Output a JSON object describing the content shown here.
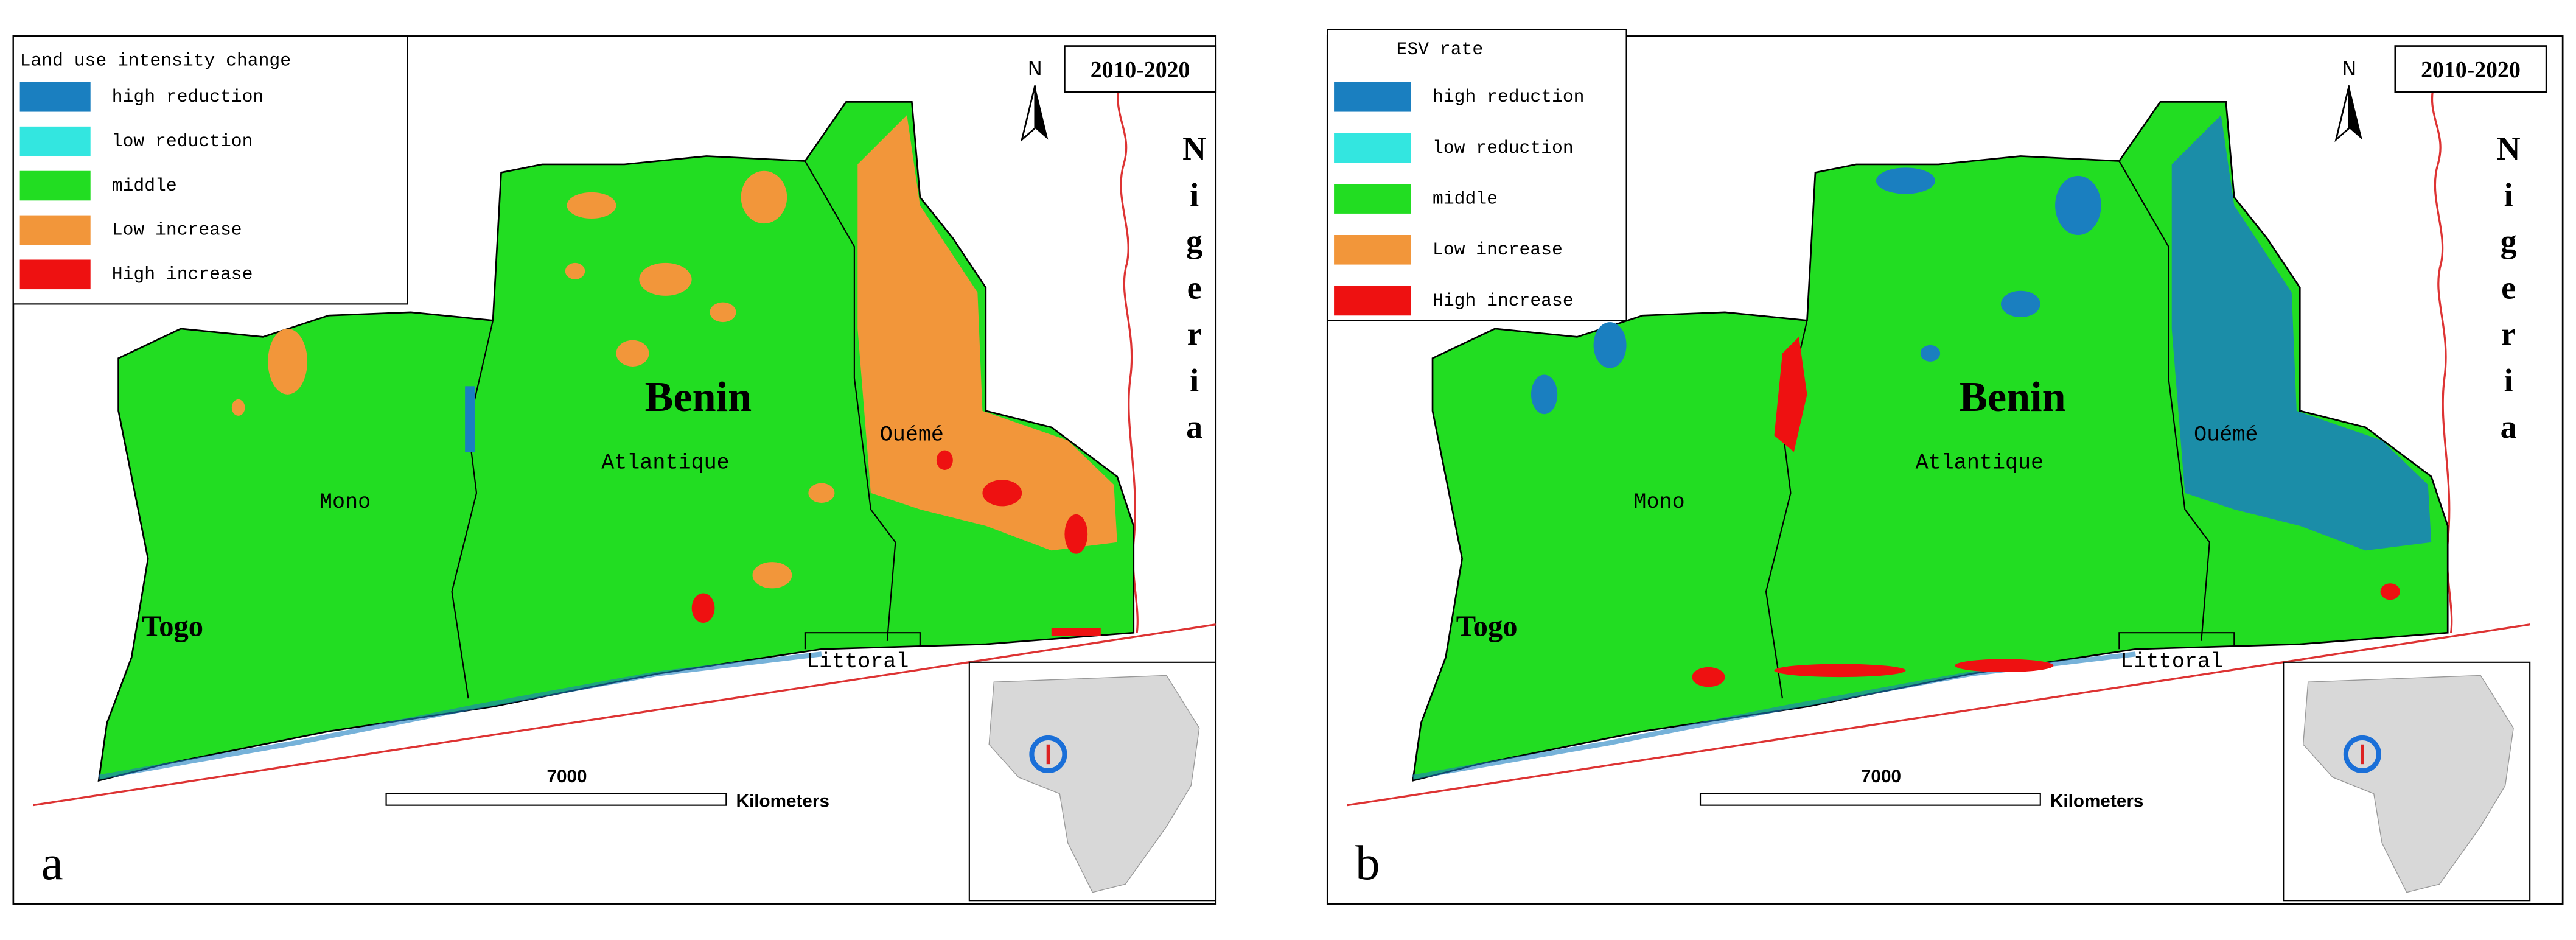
{
  "panels": [
    {
      "label": "a",
      "legend_title": "Land  use intensity change",
      "legend": [
        {
          "label": "high reduction",
          "color": "#1a7fc0"
        },
        {
          "label": "low  reduction",
          "color": "#33e6e0"
        },
        {
          "label": "middle",
          "color": "#22dd22"
        },
        {
          "label": "Low  increase",
          "color": "#f2963a"
        },
        {
          "label": "High increase",
          "color": "#ee1111"
        }
      ],
      "period": "2010-2020",
      "north": "N",
      "places": [
        "Benin",
        "Atlantique",
        "Mono",
        "Ouémé",
        "Togo",
        "Littoral"
      ],
      "country_label": "Nigeria",
      "scale_value": "7000",
      "scale_unit": "Kilometers"
    },
    {
      "label": "b",
      "legend_title": "ESV rate",
      "legend": [
        {
          "label": "high reduction",
          "color": "#1a7fc0"
        },
        {
          "label": "low  reduction",
          "color": "#33e6e0"
        },
        {
          "label": "middle",
          "color": "#22dd22"
        },
        {
          "label": "Low  increase",
          "color": "#f2963a"
        },
        {
          "label": "High increase",
          "color": "#ee1111"
        }
      ],
      "period": "2010-2020",
      "north": "N",
      "places": [
        "Benin",
        "Atlantique",
        "Mono",
        "Ouémé",
        "Togo",
        "Littoral"
      ],
      "country_label": "Nigeria",
      "scale_value": "7000",
      "scale_unit": "Kilometers"
    }
  ]
}
